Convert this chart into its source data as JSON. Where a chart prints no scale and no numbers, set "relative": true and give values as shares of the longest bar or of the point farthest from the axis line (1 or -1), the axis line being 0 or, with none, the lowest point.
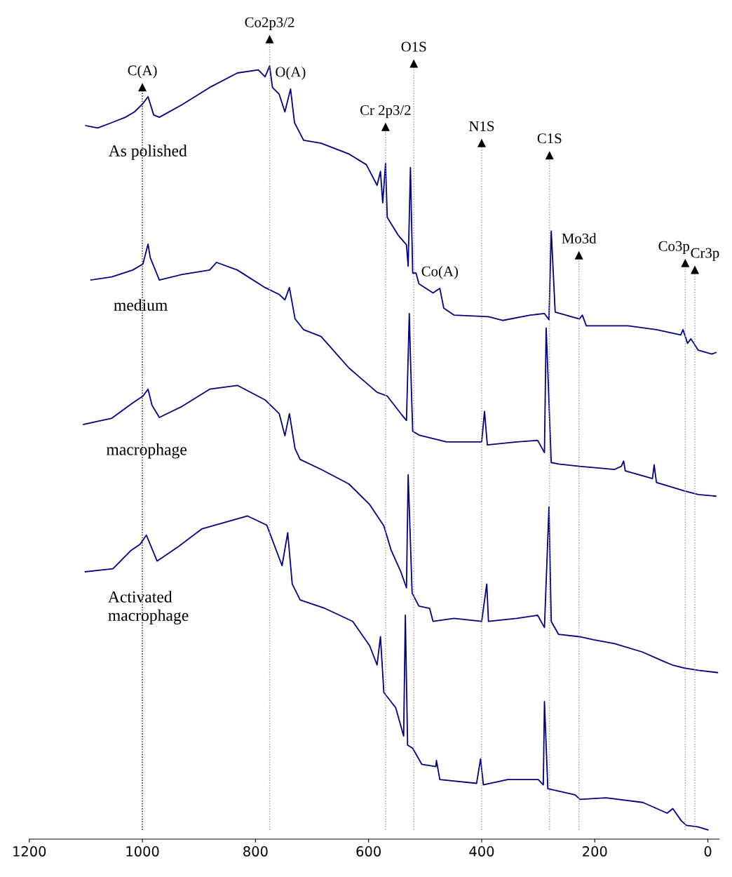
{
  "chart_data": {
    "type": "line",
    "relative": true,
    "xlim": [
      1200,
      -20
    ],
    "xticks": [
      1200,
      1000,
      800,
      600,
      400,
      200,
      0
    ],
    "grid": false,
    "legend": false,
    "marker": "none",
    "line_style": "solid",
    "series": [
      {
        "name": "As polished",
        "color": "#000080",
        "x": [
          1100,
          1079,
          1054,
          1030,
          1014,
          999,
          990,
          980,
          970,
          931,
          881,
          832,
          795,
          783,
          775,
          770,
          758,
          748,
          738,
          731,
          715,
          684,
          635,
          604,
          585,
          579,
          575,
          570,
          567,
          548,
          533,
          530,
          526,
          522,
          516,
          511,
          486,
          474,
          467,
          449,
          388,
          363,
          314,
          289,
          281,
          277,
          270,
          227,
          222,
          215,
          141,
          91,
          48,
          44,
          36,
          30,
          17,
          -7,
          -14
        ],
        "values": [
          0.922,
          0.919,
          0.926,
          0.933,
          0.94,
          0.951,
          0.96,
          0.936,
          0.933,
          0.949,
          0.972,
          0.991,
          0.995,
          0.986,
          1.0,
          0.972,
          0.963,
          0.94,
          0.97,
          0.926,
          0.903,
          0.899,
          0.885,
          0.871,
          0.844,
          0.862,
          0.821,
          0.873,
          0.802,
          0.779,
          0.766,
          0.738,
          0.867,
          0.729,
          0.729,
          0.715,
          0.703,
          0.709,
          0.683,
          0.674,
          0.672,
          0.667,
          0.674,
          0.676,
          0.668,
          0.784,
          0.678,
          0.669,
          0.674,
          0.66,
          0.66,
          0.655,
          0.648,
          0.655,
          0.637,
          0.643,
          0.628,
          0.623,
          0.625
        ]
      },
      {
        "name": "medium",
        "color": "#000080",
        "x": [
          1091,
          1054,
          1017,
          999,
          990,
          986,
          970,
          931,
          881,
          869,
          832,
          783,
          758,
          748,
          740,
          730,
          715,
          684,
          635,
          585,
          567,
          543,
          533,
          528,
          526,
          522,
          511,
          462,
          400,
          395,
          390,
          338,
          301,
          289,
          286,
          283,
          277,
          264,
          227,
          165,
          153,
          149,
          146,
          98,
          95,
          91,
          42,
          17,
          -14
        ],
        "values": [
          0.72,
          0.724,
          0.733,
          0.741,
          0.767,
          0.749,
          0.72,
          0.727,
          0.733,
          0.743,
          0.733,
          0.71,
          0.701,
          0.694,
          0.71,
          0.669,
          0.655,
          0.646,
          0.605,
          0.573,
          0.568,
          0.545,
          0.536,
          0.676,
          0.619,
          0.522,
          0.517,
          0.508,
          0.508,
          0.548,
          0.504,
          0.508,
          0.51,
          0.494,
          0.657,
          0.6,
          0.481,
          0.479,
          0.476,
          0.472,
          0.476,
          0.483,
          0.47,
          0.46,
          0.478,
          0.455,
          0.444,
          0.439,
          0.437
        ]
      },
      {
        "name": "macrophage",
        "color": "#000080",
        "x": [
          1104,
          1054,
          1017,
          999,
          990,
          983,
          970,
          931,
          881,
          832,
          783,
          758,
          748,
          740,
          730,
          721,
          684,
          635,
          598,
          573,
          560,
          543,
          533,
          530,
          523,
          511,
          492,
          486,
          449,
          400,
          391,
          388,
          338,
          301,
          289,
          281,
          277,
          264,
          227,
          202,
          165,
          116,
          79,
          63,
          42,
          17,
          -17
        ],
        "values": [
          0.531,
          0.539,
          0.559,
          0.568,
          0.577,
          0.556,
          0.54,
          0.554,
          0.577,
          0.582,
          0.563,
          0.545,
          0.516,
          0.545,
          0.499,
          0.485,
          0.472,
          0.453,
          0.426,
          0.398,
          0.366,
          0.338,
          0.317,
          0.465,
          0.31,
          0.293,
          0.29,
          0.273,
          0.277,
          0.273,
          0.322,
          0.273,
          0.277,
          0.281,
          0.265,
          0.423,
          0.273,
          0.256,
          0.253,
          0.249,
          0.244,
          0.233,
          0.221,
          0.216,
          0.212,
          0.209,
          0.206
        ]
      },
      {
        "name": "Activated\nmacrophage",
        "color": "#000080",
        "x": [
          1101,
          1052,
          1020,
          1004,
          993,
          974,
          938,
          895,
          814,
          780,
          753,
          743,
          735,
          721,
          677,
          628,
          598,
          585,
          579,
          573,
          552,
          538,
          535,
          531,
          522,
          506,
          481,
          480,
          474,
          409,
          402,
          397,
          354,
          300,
          291,
          289,
          283,
          235,
          226,
          180,
          115,
          72,
          62,
          47,
          38,
          17,
          0
        ],
        "values": [
          0.338,
          0.342,
          0.366,
          0.374,
          0.386,
          0.352,
          0.37,
          0.394,
          0.411,
          0.399,
          0.346,
          0.389,
          0.322,
          0.301,
          0.29,
          0.273,
          0.241,
          0.216,
          0.253,
          0.18,
          0.16,
          0.123,
          0.281,
          0.111,
          0.107,
          0.086,
          0.083,
          0.091,
          0.066,
          0.061,
          0.093,
          0.059,
          0.066,
          0.066,
          0.059,
          0.168,
          0.054,
          0.046,
          0.04,
          0.042,
          0.036,
          0.022,
          0.028,
          0.012,
          0.006,
          0.004,
          0
        ]
      }
    ],
    "ref_lines": [
      {
        "axis": "x",
        "value": 1000,
        "color": "#000000",
        "line_style": "dotted"
      },
      {
        "axis": "x",
        "value": 775,
        "color": "#999999",
        "line_style": "dotted"
      },
      {
        "axis": "x",
        "value": 570,
        "color": "#999999",
        "line_style": "dotted"
      },
      {
        "axis": "x",
        "value": 520,
        "color": "#999999",
        "line_style": "dotted"
      },
      {
        "axis": "x",
        "value": 400,
        "color": "#999999",
        "line_style": "dotted"
      },
      {
        "axis": "x",
        "value": 280,
        "color": "#999999",
        "line_style": "dotted"
      },
      {
        "axis": "x",
        "value": 228,
        "color": "#999999",
        "line_style": "dotted"
      },
      {
        "axis": "x",
        "value": 40,
        "color": "#999999",
        "line_style": "dotted"
      },
      {
        "axis": "x",
        "value": 23,
        "color": "#999999",
        "line_style": "dotted"
      }
    ],
    "annotations": [
      {
        "text": "C(A)",
        "x": 1000,
        "y": 0.972
      },
      {
        "text": "Co2p3/2",
        "x": 775,
        "y": 1.035
      },
      {
        "text": "O(A)",
        "x": 738,
        "y": 0.97
      },
      {
        "text": "O1S",
        "x": 520,
        "y": 1.003
      },
      {
        "text": "Cr 2p3/2",
        "x": 570,
        "y": 0.92
      },
      {
        "text": "N1S",
        "x": 400,
        "y": 0.899
      },
      {
        "text": "C1S",
        "x": 280,
        "y": 0.883
      },
      {
        "text": "Co(A)",
        "x": 474,
        "y": 0.709
      },
      {
        "text": "Mo3d",
        "x": 228,
        "y": 0.752
      },
      {
        "text": "Co3p",
        "x": 40,
        "y": 0.742
      },
      {
        "text": "Cr3p",
        "x": 23,
        "y": 0.733
      }
    ]
  }
}
